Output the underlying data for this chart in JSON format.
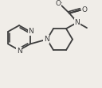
{
  "bg_color": "#f0ede8",
  "line_color": "#3d3d3d",
  "line_width": 1.3,
  "font_size": 6.5,
  "figsize": [
    1.28,
    1.11
  ],
  "dpi": 100,
  "xlim": [
    0,
    128
  ],
  "ylim": [
    0,
    111
  ]
}
